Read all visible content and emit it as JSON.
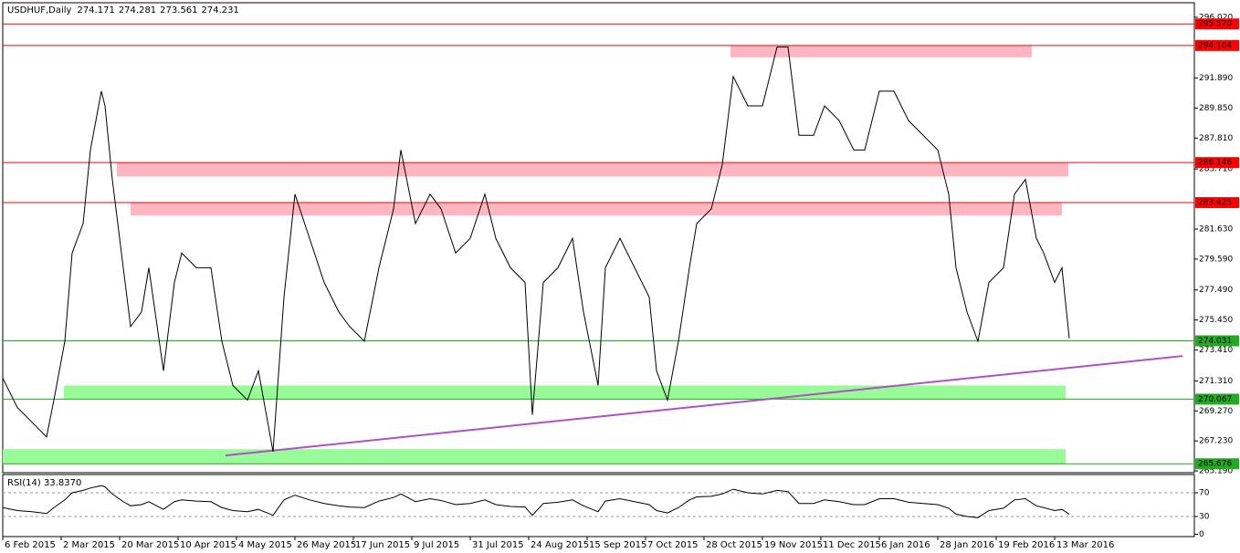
{
  "chart_data": [
    {
      "type": "line",
      "title": "USDHUF,Daily",
      "ohlc": [
        274.171,
        274.281,
        273.561,
        274.231
      ],
      "color": "#000000",
      "x": [
        0,
        4,
        8,
        12,
        14,
        17,
        19,
        22,
        24,
        27,
        28,
        30,
        33,
        35,
        38,
        40,
        44,
        47,
        49,
        53,
        57,
        60,
        63,
        67,
        70,
        74,
        77,
        80,
        84,
        88,
        92,
        95,
        99,
        103,
        107,
        109,
        113,
        117,
        120,
        124,
        128,
        132,
        135,
        139,
        143,
        145,
        148,
        152,
        156,
        159,
        163,
        165,
        169,
        173,
        177,
        179,
        182,
        185,
        188,
        190,
        194,
        197,
        200,
        204,
        208,
        212,
        215,
        218,
        222,
        225,
        229,
        233,
        236,
        240,
        244,
        248,
        252,
        256,
        259,
        261,
        264,
        267,
        270,
        274,
        277,
        280,
        283,
        285,
        288,
        290,
        292
      ],
      "series": [
        {
          "values": [
            271.5,
            269.5,
            268.5,
            267.5,
            270,
            274,
            280,
            282,
            287,
            291,
            290,
            285,
            279,
            275,
            276,
            279,
            272,
            278,
            280,
            279,
            279,
            274,
            271,
            270,
            272,
            266.5,
            277,
            284,
            281,
            278,
            276,
            275,
            274,
            279,
            283,
            287,
            282,
            284,
            283,
            280,
            281,
            284,
            281,
            279,
            278,
            269,
            278,
            279,
            281,
            276,
            271,
            279,
            281,
            279,
            277,
            272,
            270,
            274,
            279,
            282,
            283,
            286,
            292,
            290,
            290,
            294,
            294,
            288,
            288,
            290,
            289,
            287,
            287,
            291,
            291,
            289,
            288,
            287,
            284,
            279,
            276,
            274,
            278,
            279,
            284,
            285,
            281,
            280,
            278,
            279,
            274.2
          ]
        }
      ],
      "xlim": [
        0,
        326.25
      ],
      "xticks": [
        {
          "value": 0,
          "label": "6 Feb 2015"
        },
        {
          "value": 16,
          "label": "2 Mar 2015"
        },
        {
          "value": 32,
          "label": "20 Mar 2015"
        },
        {
          "value": 48,
          "label": "10 Apr 2015"
        },
        {
          "value": 64,
          "label": "4 May 2015"
        },
        {
          "value": 80,
          "label": "26 May 2015"
        },
        {
          "value": 96,
          "label": "17 Jun 2015"
        },
        {
          "value": 112,
          "label": "9 Jul 2015"
        },
        {
          "value": 128,
          "label": "31 Jul 2015"
        },
        {
          "value": 144,
          "label": "24 Aug 2015"
        },
        {
          "value": 160,
          "label": "15 Sep 2015"
        },
        {
          "value": 176,
          "label": "7 Oct 2015"
        },
        {
          "value": 192,
          "label": "28 Oct 2015"
        },
        {
          "value": 208,
          "label": "19 Nov 2015"
        },
        {
          "value": 224,
          "label": "11 Dec 2015"
        },
        {
          "value": 240,
          "label": "6 Jan 2016"
        },
        {
          "value": 256,
          "label": "28 Jan 2016"
        },
        {
          "value": 272,
          "label": "19 Feb 2016"
        },
        {
          "value": 288,
          "label": "13 Mar 2016"
        }
      ],
      "ylim": [
        265.07,
        297.01
      ],
      "yticks": [
        {
          "value": 296.02,
          "label": "296.020"
        },
        {
          "value": 291.89,
          "label": "291.890"
        },
        {
          "value": 289.85,
          "label": "289.850"
        },
        {
          "value": 287.81,
          "label": "287.810"
        },
        {
          "value": 285.71,
          "label": "285.710"
        },
        {
          "value": 281.63,
          "label": "281.630"
        },
        {
          "value": 279.59,
          "label": "279.590"
        },
        {
          "value": 277.49,
          "label": "277.490"
        },
        {
          "value": 275.45,
          "label": "275.450"
        },
        {
          "value": 273.41,
          "label": "273.410"
        },
        {
          "value": 271.31,
          "label": "271.310"
        },
        {
          "value": 269.27,
          "label": "269.270"
        },
        {
          "value": 267.23,
          "label": "267.230"
        },
        {
          "value": 265.19,
          "label": "265.190"
        }
      ],
      "levels": [
        {
          "value": 295.57,
          "label": "295.570",
          "color": "#ff0000"
        },
        {
          "value": 294.104,
          "label": "294.104",
          "color": "#ff0000"
        },
        {
          "value": 286.146,
          "label": "286.146",
          "color": "#ff0000"
        },
        {
          "value": 283.425,
          "label": "283.425",
          "color": "#ff0000"
        },
        {
          "value": 274.031,
          "label": "274.031",
          "color": "#22aa22"
        },
        {
          "value": 270.067,
          "label": "270.067",
          "color": "#22aa22"
        },
        {
          "value": 265.676,
          "label": "265.676",
          "color": "#22aa22"
        }
      ],
      "zones": [
        {
          "x": [
            199.25,
            281.75
          ],
          "from": 293.3,
          "to": 294.104,
          "color": "#ffb6c1"
        },
        {
          "x": [
            31.25,
            291.75
          ],
          "from": 285.2,
          "to": 286.146,
          "color": "#ffb6c1"
        },
        {
          "x": [
            35,
            290
          ],
          "from": 282.55,
          "to": 283.425,
          "color": "#ffb6c1"
        },
        {
          "x": [
            16.75,
            291
          ],
          "from": 270.067,
          "to": 271.0,
          "color": "#98fb98"
        },
        {
          "x": [
            0,
            291
          ],
          "from": 265.676,
          "to": 266.67,
          "color": "#98fb98"
        }
      ],
      "trendline": {
        "x": [
          61,
          323
        ],
        "values": [
          266.24,
          273.0
        ],
        "color": "#b04fc8"
      }
    },
    {
      "type": "line",
      "title": "RSI(14) 33.8370",
      "color": "#000000",
      "x": [
        0,
        4,
        8,
        12,
        14,
        17,
        19,
        22,
        24,
        27,
        28,
        30,
        33,
        35,
        38,
        40,
        44,
        47,
        49,
        53,
        57,
        60,
        63,
        67,
        70,
        74,
        77,
        80,
        84,
        88,
        92,
        95,
        99,
        103,
        107,
        109,
        113,
        117,
        120,
        124,
        128,
        132,
        135,
        139,
        143,
        145,
        148,
        152,
        156,
        159,
        163,
        165,
        169,
        173,
        177,
        179,
        182,
        185,
        188,
        190,
        194,
        197,
        200,
        204,
        208,
        212,
        215,
        218,
        222,
        225,
        229,
        233,
        236,
        240,
        244,
        248,
        252,
        256,
        259,
        261,
        264,
        267,
        270,
        274,
        277,
        280,
        283,
        285,
        288,
        290,
        292
      ],
      "series": [
        {
          "values": [
            45,
            40,
            38,
            35,
            45,
            58,
            70,
            74,
            78,
            82,
            80,
            68,
            55,
            48,
            50,
            55,
            42,
            55,
            58,
            56,
            55,
            45,
            40,
            38,
            42,
            32,
            58,
            66,
            58,
            52,
            48,
            46,
            45,
            56,
            62,
            68,
            55,
            60,
            57,
            50,
            52,
            58,
            50,
            47,
            46,
            32,
            52,
            54,
            58,
            48,
            38,
            56,
            60,
            55,
            50,
            40,
            36,
            45,
            58,
            63,
            64,
            68,
            76,
            70,
            68,
            74,
            72,
            52,
            52,
            58,
            55,
            50,
            50,
            60,
            60,
            54,
            52,
            50,
            44,
            34,
            30,
            28,
            40,
            44,
            58,
            60,
            48,
            45,
            40,
            42,
            33.837
          ]
        }
      ],
      "xlim": [
        0,
        326.25
      ],
      "ylim": [
        0,
        100
      ],
      "yticks": [
        0,
        30,
        70
      ]
    }
  ]
}
